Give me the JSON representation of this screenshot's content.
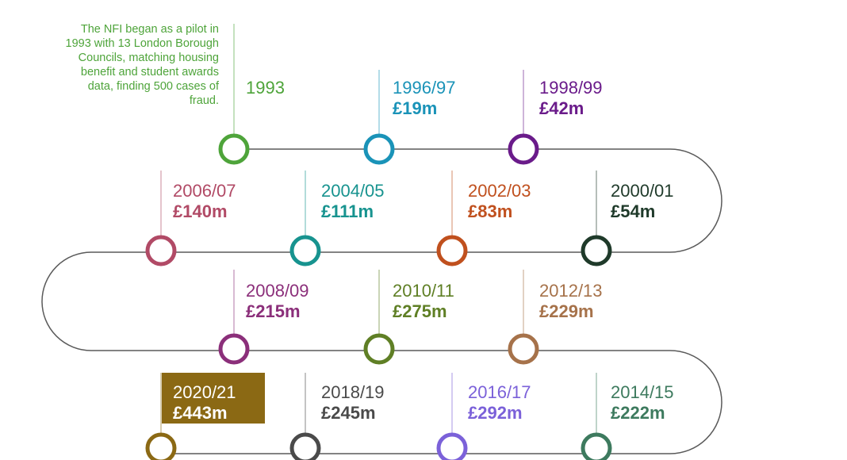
{
  "intro_text": "The NFI began as a pilot in 1993 with 13 London Borough Councils, matching housing benefit and student awards data, finding 500 cases of fraud.",
  "milestones": [
    {
      "year": "1993",
      "amount": "",
      "color": "#4ea43a",
      "highlight": false
    },
    {
      "year": "1996/97",
      "amount": "£19m",
      "color": "#1a93b8",
      "highlight": false
    },
    {
      "year": "1998/99",
      "amount": "£42m",
      "color": "#6a1b8a",
      "highlight": false
    },
    {
      "year": "2000/01",
      "amount": "£54m",
      "color": "#1f3a2a",
      "highlight": false
    },
    {
      "year": "2002/03",
      "amount": "£83m",
      "color": "#c0501e",
      "highlight": false
    },
    {
      "year": "2004/05",
      "amount": "£111m",
      "color": "#17938f",
      "highlight": false
    },
    {
      "year": "2006/07",
      "amount": "£140m",
      "color": "#b14a66",
      "highlight": false
    },
    {
      "year": "2008/09",
      "amount": "£215m",
      "color": "#8b2f7a",
      "highlight": false
    },
    {
      "year": "2010/11",
      "amount": "£275m",
      "color": "#5f7f25",
      "highlight": false
    },
    {
      "year": "2012/13",
      "amount": "£229m",
      "color": "#a6724a",
      "highlight": false
    },
    {
      "year": "2014/15",
      "amount": "£222m",
      "color": "#3d7a5e",
      "highlight": false
    },
    {
      "year": "2016/17",
      "amount": "£292m",
      "color": "#7b61d9",
      "highlight": false
    },
    {
      "year": "2018/19",
      "amount": "£245m",
      "color": "#4a4a4a",
      "highlight": false
    },
    {
      "year": "2020/21",
      "amount": "£443m",
      "color": "#8b6914",
      "highlight": true
    }
  ],
  "colors": {
    "track": "#5a5a5a",
    "highlight_bg": "#8b6914",
    "highlight_text": "#ffffff"
  }
}
